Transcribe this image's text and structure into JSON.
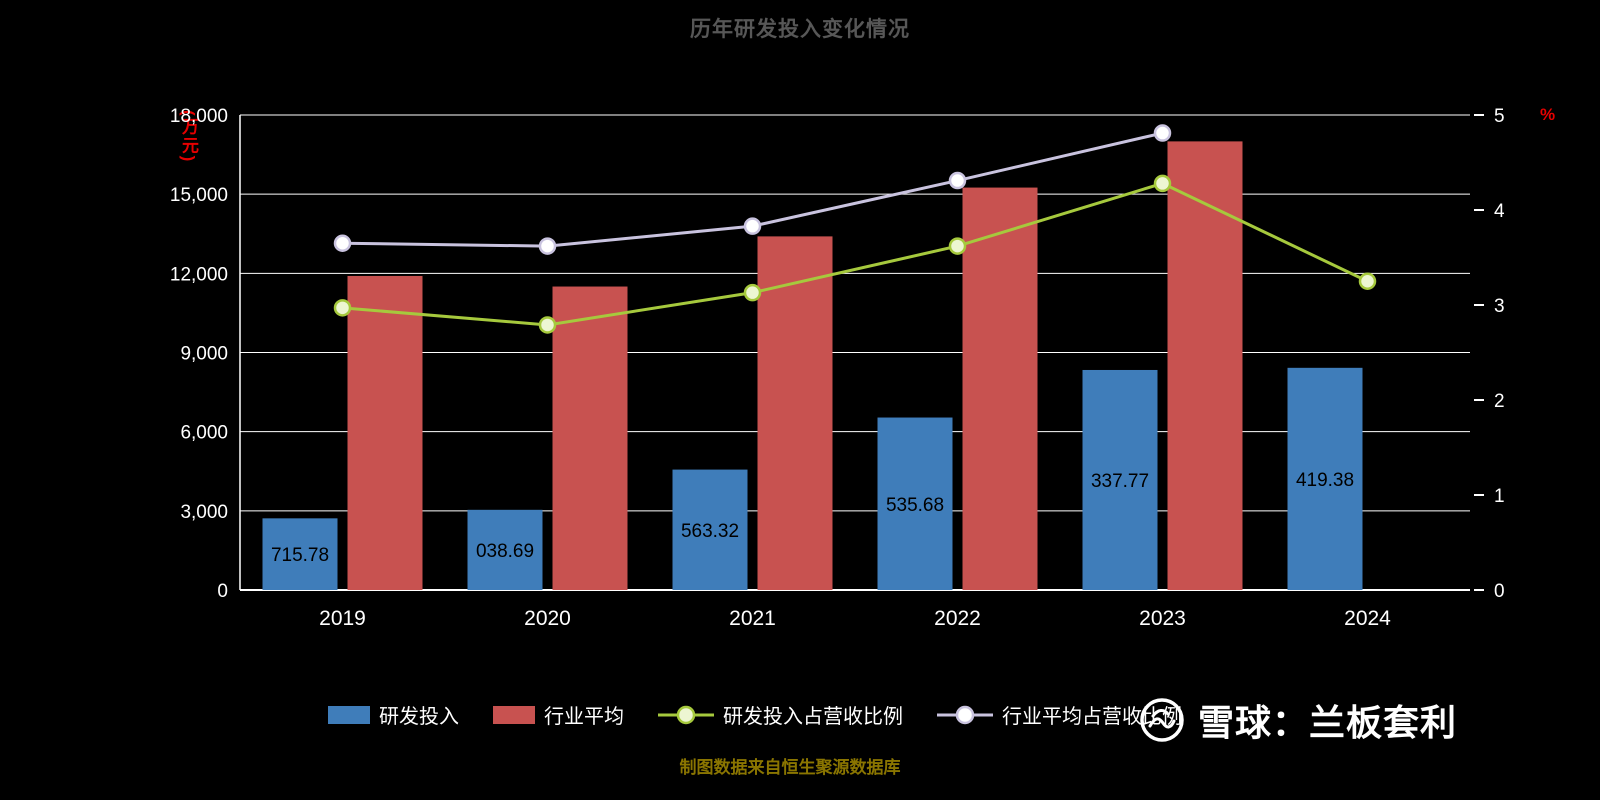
{
  "title": "历年研发投入变化情况",
  "source_note": "制图数据来自恒生聚源数据库",
  "watermark": {
    "text": "雪球：兰板套利"
  },
  "axes": {
    "left": {
      "unit": "(万元)",
      "unit_color": "#e60000",
      "ticks": [
        {
          "label": "0",
          "value": 0
        },
        {
          "label": "3,000",
          "value": 3000
        },
        {
          "label": "6,000",
          "value": 6000
        },
        {
          "label": "9,000",
          "value": 9000
        },
        {
          "label": "12,000",
          "value": 12000
        },
        {
          "label": "15,000",
          "value": 15000
        },
        {
          "label": "18,000",
          "value": 18000
        }
      ]
    },
    "right": {
      "unit": "%",
      "unit_color": "#e60000",
      "ticks": [
        {
          "label": "0",
          "value": 0
        },
        {
          "label": "1",
          "value": 1
        },
        {
          "label": "2",
          "value": 2
        },
        {
          "label": "3",
          "value": 3
        },
        {
          "label": "4",
          "value": 4
        },
        {
          "label": "5",
          "value": 5
        }
      ]
    }
  },
  "chart_data": {
    "type": "bar",
    "subtype": "dual-axis bar + line combo",
    "categories": [
      "2019",
      "2020",
      "2021",
      "2022",
      "2023",
      "2024"
    ],
    "left_ylim": [
      0,
      18000
    ],
    "right_ylim": [
      0,
      5
    ],
    "grid": true,
    "legend_position": "bottom",
    "background": "#000000",
    "series": [
      {
        "name": "研发投入",
        "type": "bar",
        "axis": "left",
        "color": "#3f7dba",
        "values": [
          2715.78,
          3038.69,
          4563.32,
          6535.68,
          8337.77,
          8419.38
        ],
        "visible_labels": [
          "715.78",
          "038.69",
          "563.32",
          "535.68",
          "337.77",
          "419.38"
        ],
        "label_color": "#000000"
      },
      {
        "name": "行业平均",
        "type": "bar",
        "axis": "left",
        "color": "#c85250",
        "values": [
          11900,
          11500,
          13400,
          15250,
          17000,
          null
        ]
      },
      {
        "name": "研发投入占营收比例",
        "type": "line",
        "axis": "right",
        "color": "#a6c93d",
        "marker_fill": "#edf6d2",
        "values": [
          2.97,
          2.79,
          3.13,
          3.62,
          4.28,
          3.25
        ]
      },
      {
        "name": "行业平均占营收比例",
        "type": "line",
        "axis": "right",
        "color": "#c9c3df",
        "marker_fill": "#ffffff",
        "values": [
          3.65,
          3.62,
          3.83,
          4.31,
          4.81,
          null
        ]
      }
    ]
  }
}
